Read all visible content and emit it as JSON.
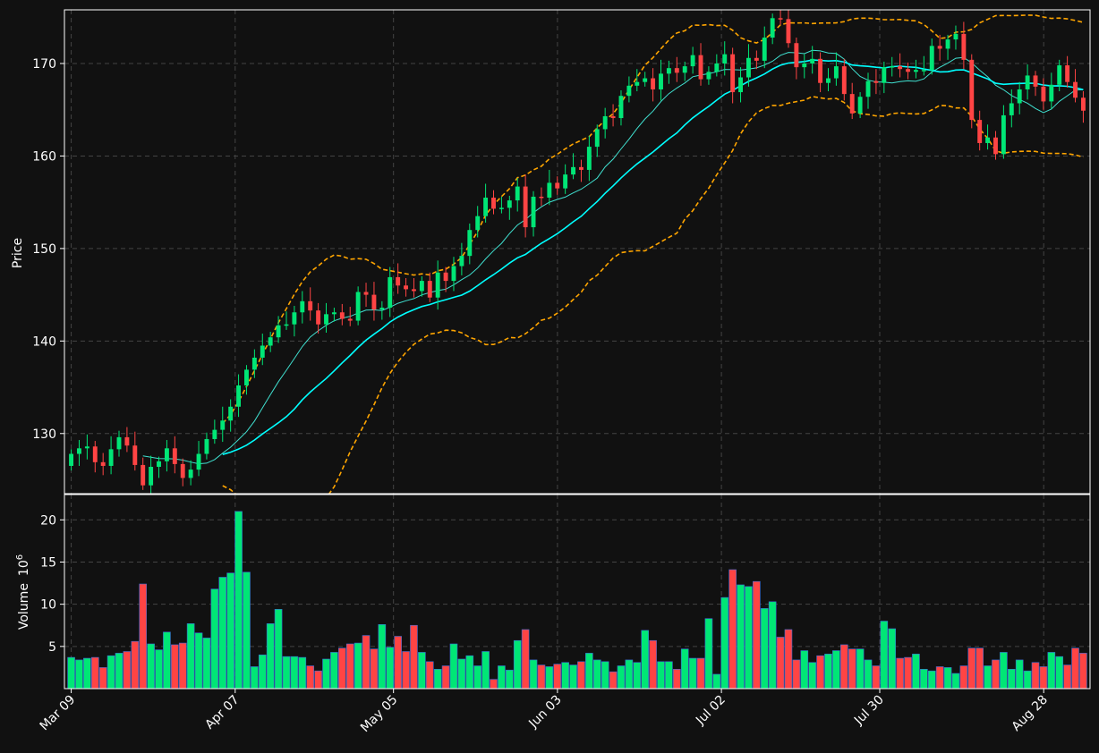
{
  "chart_data": {
    "type": "candlestick",
    "style": "dark",
    "colors": {
      "background": "#111111",
      "up": "#00e676",
      "down": "#ff4444",
      "sma_fast": "#40e0d0",
      "sma_slow": "#00ffff",
      "bollinger": "#ffa500",
      "grid": "#444444",
      "axis": "#ffffff"
    },
    "price_panel": {
      "ylabel": "Price",
      "ylim": [
        123.5,
        175.8
      ],
      "yticks": [
        "130",
        "140",
        "150",
        "160",
        "170"
      ],
      "grid": true
    },
    "volume_panel": {
      "ylabel": "Volume",
      "ylabel_exponent": "10",
      "ylabel_power": "6",
      "ylim": [
        0,
        23
      ],
      "yticks": [
        "5",
        "10",
        "15",
        "20"
      ],
      "unit": "millions",
      "grid": true
    },
    "x_date_range": [
      "2024-03-09",
      "2024-09-04"
    ],
    "xticks": [
      {
        "date": "2024-03-09",
        "label": "Mar 09"
      },
      {
        "date": "2024-04-07",
        "label": "Apr 07"
      },
      {
        "date": "2024-05-05",
        "label": "May 05"
      },
      {
        "date": "2024-06-03",
        "label": "Jun 03"
      },
      {
        "date": "2024-07-02",
        "label": "Jul 02"
      },
      {
        "date": "2024-07-30",
        "label": "Jul 30"
      },
      {
        "date": "2024-08-28",
        "label": "Aug 28"
      }
    ],
    "close_values": [
      127.8,
      128.4,
      128.6,
      126.9,
      126.5,
      128.3,
      129.6,
      128.7,
      126.6,
      124.4,
      126.4,
      127.0,
      128.4,
      126.7,
      125.2,
      126.1,
      127.8,
      129.4,
      130.4,
      131.4,
      132.9,
      135.2,
      136.9,
      138.2,
      139.5,
      140.4,
      141.7,
      141.8,
      143.1,
      144.3,
      143.3,
      141.8,
      142.9,
      143.1,
      142.4,
      142.2,
      145.3,
      145.0,
      143.4,
      143.6,
      146.9,
      146.0,
      145.6,
      145.4,
      146.5,
      144.7,
      147.4,
      146.5,
      148.1,
      149.2,
      152.0,
      153.5,
      155.5,
      154.3,
      154.4,
      155.2,
      156.7,
      152.3,
      155.6,
      155.5,
      157.1,
      156.5,
      158.0,
      158.8,
      158.5,
      161.0,
      162.9,
      164.3,
      164.1,
      166.5,
      167.6,
      168.0,
      168.4,
      167.2,
      168.9,
      169.5,
      169.0,
      169.7,
      170.9,
      168.3,
      169.1,
      170.0,
      171.0,
      166.9,
      168.5,
      170.6,
      170.3,
      172.8,
      174.9,
      174.8,
      172.2,
      169.6,
      170.0,
      170.5,
      167.9,
      168.4,
      169.7,
      166.7,
      164.6,
      166.4,
      168.1,
      167.9,
      169.6,
      169.7,
      169.4,
      169.1,
      169.3,
      169.3,
      171.9,
      171.6,
      172.6,
      173.2,
      170.4,
      163.9,
      161.4,
      162.0,
      160.2,
      164.4,
      165.7,
      167.2,
      168.7,
      167.5,
      165.9,
      167.7,
      169.8,
      168.0,
      166.3,
      164.9
    ],
    "volume_values": [
      3.7,
      3.4,
      3.6,
      3.7,
      2.5,
      3.9,
      4.2,
      4.4,
      5.6,
      12.4,
      5.3,
      4.6,
      6.7,
      5.2,
      5.4,
      7.7,
      6.6,
      6.0,
      11.8,
      13.2,
      13.7,
      21.0,
      13.8,
      2.6,
      4.0,
      7.7,
      9.4,
      3.8,
      3.8,
      3.7,
      2.7,
      2.1,
      3.5,
      4.3,
      4.8,
      5.3,
      5.4,
      6.3,
      4.7,
      7.6,
      4.9,
      6.2,
      4.4,
      7.5,
      4.3,
      3.2,
      2.3,
      2.7,
      5.3,
      3.5,
      3.9,
      2.7,
      4.4,
      1.1,
      2.7,
      2.2,
      5.7,
      7.0,
      3.4,
      2.8,
      2.6,
      2.9,
      3.1,
      2.8,
      3.2,
      4.2,
      3.4,
      3.2,
      2.0,
      2.7,
      3.4,
      3.1,
      6.9,
      5.7,
      3.2,
      3.2,
      2.3,
      4.7,
      3.6,
      3.6,
      8.3,
      1.7,
      10.8,
      14.1,
      12.3,
      12.1,
      12.7,
      9.5,
      10.3,
      6.1,
      7.0,
      3.4,
      4.5,
      3.1,
      3.9,
      4.1,
      4.5,
      5.2,
      4.7,
      4.7,
      3.4,
      2.7,
      8.0,
      7.1,
      3.6,
      3.7,
      4.1,
      2.3,
      2.1,
      2.6,
      2.5,
      1.8,
      2.7,
      4.8,
      4.8,
      2.7,
      3.4,
      4.3,
      2.3,
      3.4,
      2.1,
      3.1,
      2.6,
      4.3,
      3.8,
      2.8,
      4.8,
      4.2
    ],
    "sma_fast_start_index": 9,
    "sma_slow_start_index": 19,
    "bollinger_start_index": 19
  }
}
